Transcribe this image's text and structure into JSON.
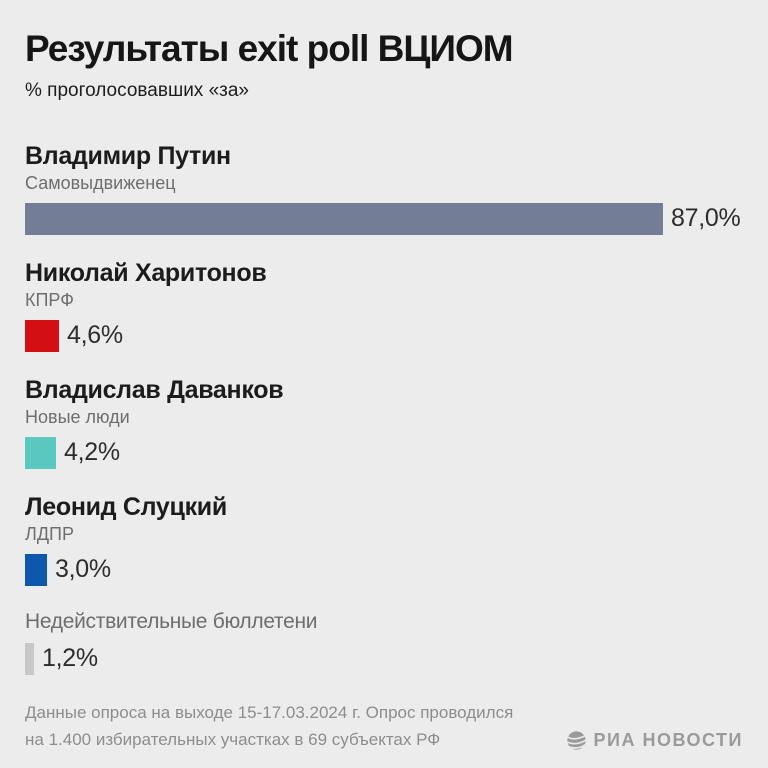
{
  "page": {
    "title": "Результаты exit poll ВЦИОМ",
    "subtitle": "% проголосовавших «за»"
  },
  "chart_data": {
    "type": "bar",
    "orientation": "horizontal",
    "title": "Результаты exit poll ВЦИОМ",
    "subtitle": "% проголосовавших «за»",
    "unit": "%",
    "xlim": [
      0,
      87
    ],
    "categories": [
      "Владимир Путин",
      "Николай Харитонов",
      "Владислав Даванков",
      "Леонид Слуцкий",
      "Недействительные бюллетени"
    ],
    "values": [
      87.0,
      4.6,
      4.2,
      3.0,
      1.2
    ],
    "bars": [
      {
        "name": "Владимир Путин",
        "party": "Самовыдвиженец",
        "value": 87.0,
        "value_label": "87,0%",
        "color": "#737e96"
      },
      {
        "name": "Николай Харитонов",
        "party": "КПРФ",
        "value": 4.6,
        "value_label": "4,6%",
        "color": "#d40f14"
      },
      {
        "name": "Владислав Даванков",
        "party": "Новые люди",
        "value": 4.2,
        "value_label": "4,2%",
        "color": "#5bc8c0"
      },
      {
        "name": "Леонид Слуцкий",
        "party": "ЛДПР",
        "value": 3.0,
        "value_label": "3,0%",
        "color": "#0d57ad"
      },
      {
        "name": "Недействительные бюллетени",
        "party": "",
        "value": 1.2,
        "value_label": "1,2%",
        "color": "#c8c8c8"
      }
    ]
  },
  "footer": {
    "note_lines": [
      "Данные опроса на выходе 15-17.03.2024 г. Опрос проводился",
      "на 1.400 избирательных участках в 69 субъектах РФ"
    ],
    "brand": "РИА НОВОСТИ",
    "brand_color": "#9a9a9a"
  }
}
